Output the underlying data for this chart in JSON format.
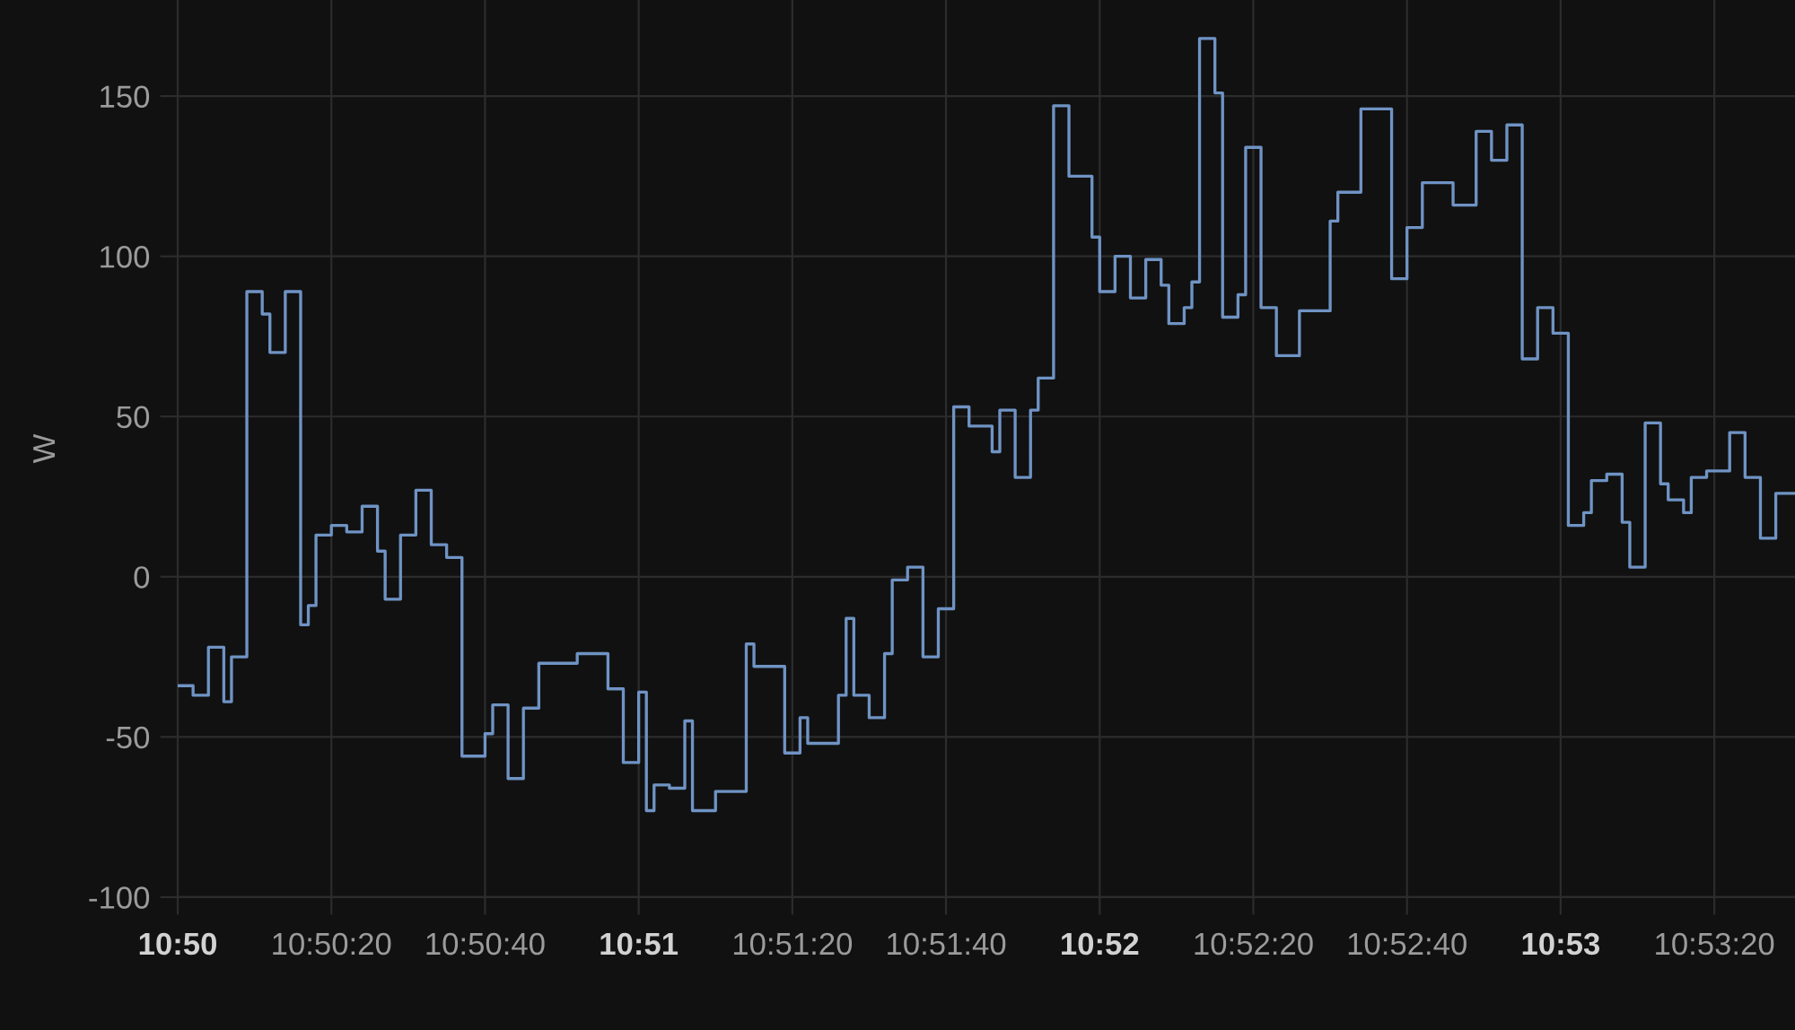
{
  "chart_data": {
    "type": "step",
    "ylabel": "W",
    "color": "#6f93c4",
    "x": [
      10.833333,
      10.833889,
      10.834444,
      10.835,
      10.835278,
      10.835833,
      10.836389,
      10.836667,
      10.837222,
      10.837778,
      10.838056,
      10.838333,
      10.838889,
      10.839444,
      10.84,
      10.840556,
      10.840833,
      10.841389,
      10.841944,
      10.8425,
      10.843056,
      10.843611,
      10.844444,
      10.844722,
      10.845278,
      10.845833,
      10.846389,
      10.847778,
      10.848889,
      10.849444,
      10.85,
      10.850278,
      10.850556,
      10.851111,
      10.851667,
      10.851944,
      10.852778,
      10.853889,
      10.854167,
      10.855278,
      10.855833,
      10.856111,
      10.857222,
      10.8575,
      10.857778,
      10.858333,
      10.858889,
      10.859167,
      10.859722,
      10.860278,
      10.860833,
      10.861389,
      10.861944,
      10.862778,
      10.863056,
      10.863611,
      10.864167,
      10.864444,
      10.865,
      10.865556,
      10.866389,
      10.866667,
      10.867222,
      10.867778,
      10.868333,
      10.868889,
      10.869167,
      10.869722,
      10.87,
      10.870278,
      10.870833,
      10.871111,
      10.871667,
      10.871944,
      10.8725,
      10.873056,
      10.873889,
      10.875,
      10.875278,
      10.876111,
      10.877222,
      10.877778,
      10.878333,
      10.879444,
      10.880278,
      10.880833,
      10.881389,
      10.881944,
      10.8825,
      10.883056,
      10.883611,
      10.884167,
      10.884444,
      10.885,
      10.885556,
      10.885833,
      10.886389,
      10.886944,
      10.887222,
      10.887778,
      10.888056,
      10.888611,
      10.889444,
      10.89,
      10.890556,
      10.891111,
      10.891806
    ],
    "values": [
      -34,
      -37,
      -22,
      -39,
      -25,
      89,
      82,
      70,
      89,
      -15,
      -9,
      13,
      16,
      14,
      22,
      8,
      -7,
      13,
      27,
      10,
      6,
      -56,
      -49,
      -40,
      -63,
      -41,
      -27,
      -24,
      -35,
      -58,
      -36,
      -73,
      -65,
      -66,
      -45,
      -73,
      -67,
      -21,
      -28,
      -55,
      -44,
      -52,
      -37,
      -13,
      -37,
      -44,
      -24,
      -1,
      3,
      -25,
      -10,
      53,
      47,
      39,
      52,
      31,
      52,
      62,
      147,
      125,
      106,
      89,
      100,
      87,
      99,
      91,
      79,
      84,
      92,
      168,
      151,
      81,
      88,
      134,
      84,
      69,
      83,
      111,
      120,
      146,
      93,
      109,
      123,
      116,
      139,
      130,
      141,
      68,
      84,
      76,
      16,
      20,
      30,
      32,
      17,
      3,
      48,
      29,
      24,
      20,
      31,
      33,
      45,
      31,
      12,
      26,
      26
    ],
    "xlim": [
      10.833333,
      10.891806
    ],
    "ylim": [
      -100,
      180
    ],
    "xticks": [
      {
        "value": 10.833333,
        "label": "10:50"
      },
      {
        "value": 10.838889,
        "label": "10:50:20"
      },
      {
        "value": 10.844444,
        "label": "10:50:40"
      },
      {
        "value": 10.85,
        "label": "10:51"
      },
      {
        "value": 10.855556,
        "label": "10:51:20"
      },
      {
        "value": 10.861111,
        "label": "10:51:40"
      },
      {
        "value": 10.866667,
        "label": "10:52"
      },
      {
        "value": 10.872222,
        "label": "10:52:20"
      },
      {
        "value": 10.877778,
        "label": "10:52:40"
      },
      {
        "value": 10.883333,
        "label": "10:53"
      },
      {
        "value": 10.888889,
        "label": "10:53:20"
      }
    ],
    "yticks": [
      -100,
      -50,
      0,
      50,
      100,
      150
    ],
    "grid": true
  }
}
